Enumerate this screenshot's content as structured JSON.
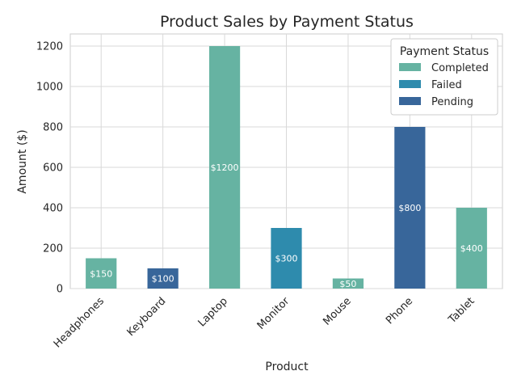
{
  "chart_data": {
    "type": "bar",
    "title": "Product Sales by Payment Status",
    "xlabel": "Product",
    "ylabel": "Amount ($)",
    "ylim": [
      0,
      1260
    ],
    "yticks": [
      0,
      200,
      400,
      600,
      800,
      1000,
      1200
    ],
    "grid": true,
    "legend": {
      "title": "Payment Status",
      "position": "top-right"
    },
    "categories": [
      "Headphones",
      "Keyboard",
      "Laptop",
      "Monitor",
      "Mouse",
      "Phone",
      "Tablet"
    ],
    "series": [
      {
        "name": "Completed",
        "color": "#66b3a2",
        "values": [
          150,
          0,
          1200,
          0,
          50,
          0,
          400
        ]
      },
      {
        "name": "Failed",
        "color": "#2e8bad",
        "values": [
          0,
          0,
          0,
          300,
          0,
          0,
          0
        ]
      },
      {
        "name": "Pending",
        "color": "#38669a",
        "values": [
          0,
          100,
          0,
          0,
          0,
          800,
          0
        ]
      }
    ],
    "data_labels": [
      "$150",
      "$100",
      "$1200",
      "$300",
      "$50",
      "$800",
      "$400"
    ]
  }
}
